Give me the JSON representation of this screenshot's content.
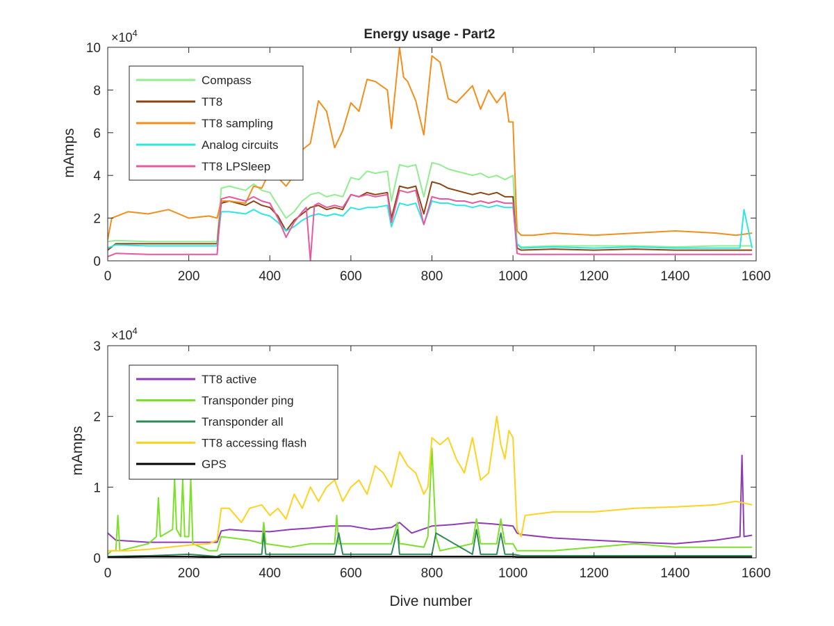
{
  "chart_data": [
    {
      "type": "line",
      "title": "Energy usage - Part2",
      "xlabel": "",
      "ylabel": "mAmps",
      "y_exponent_label": "×10",
      "y_exponent_power": "4",
      "xlim": [
        0,
        1600
      ],
      "ylim": [
        0,
        10
      ],
      "x_ticks": [
        "0",
        "200",
        "400",
        "600",
        "800",
        "1000",
        "1200",
        "1400",
        "1600"
      ],
      "y_ticks": [
        "0",
        "2",
        "4",
        "6",
        "8",
        "10"
      ],
      "legend_position": "top-left",
      "series": [
        {
          "name": "Compass",
          "color": "#90EE90",
          "x": [
            0,
            20,
            100,
            200,
            270,
            280,
            300,
            340,
            360,
            380,
            400,
            420,
            440,
            460,
            480,
            500,
            520,
            540,
            560,
            580,
            600,
            620,
            640,
            660,
            690,
            700,
            720,
            740,
            760,
            780,
            800,
            820,
            840,
            860,
            880,
            900,
            920,
            940,
            960,
            980,
            1000,
            1010,
            1020,
            1100,
            1200,
            1300,
            1400,
            1500,
            1560,
            1590
          ],
          "y": [
            0.9,
            0.95,
            0.9,
            0.9,
            0.9,
            3.4,
            3.5,
            3.3,
            3.6,
            3.3,
            3.2,
            2.6,
            2.0,
            2.3,
            2.8,
            3.1,
            3.2,
            3.0,
            3.1,
            3.0,
            3.9,
            3.8,
            4.2,
            4.1,
            4.2,
            2.8,
            4.5,
            4.4,
            4.5,
            3.0,
            4.6,
            4.5,
            4.3,
            4.2,
            4.1,
            4.0,
            4.1,
            3.9,
            4.0,
            3.8,
            4.0,
            0.8,
            0.65,
            0.7,
            0.7,
            0.7,
            0.65,
            0.7,
            0.7,
            0.7
          ]
        },
        {
          "name": "TT8",
          "color": "#8B4513",
          "x": [
            0,
            20,
            100,
            200,
            270,
            280,
            300,
            340,
            360,
            380,
            400,
            420,
            440,
            460,
            480,
            500,
            520,
            540,
            560,
            580,
            600,
            620,
            640,
            660,
            690,
            700,
            720,
            740,
            760,
            780,
            800,
            820,
            840,
            860,
            880,
            900,
            920,
            940,
            960,
            980,
            1000,
            1010,
            1020,
            1100,
            1200,
            1300,
            1400,
            1500,
            1560,
            1590
          ],
          "y": [
            0.5,
            0.8,
            0.8,
            0.8,
            0.8,
            2.7,
            2.8,
            2.6,
            2.8,
            2.6,
            2.5,
            2.1,
            1.4,
            1.9,
            2.2,
            2.5,
            2.6,
            2.4,
            2.5,
            2.4,
            3.1,
            3.0,
            3.2,
            3.1,
            3.2,
            2.0,
            3.5,
            3.4,
            3.5,
            2.2,
            3.7,
            3.6,
            3.4,
            3.3,
            3.2,
            3.1,
            3.2,
            3.1,
            3.2,
            3.0,
            3.0,
            0.6,
            0.5,
            0.55,
            0.5,
            0.55,
            0.5,
            0.5,
            0.5,
            0.5
          ]
        },
        {
          "name": "TT8 sampling",
          "color": "#F28E1C",
          "x": [
            0,
            10,
            50,
            100,
            150,
            200,
            250,
            270,
            280,
            300,
            340,
            360,
            380,
            400,
            420,
            440,
            460,
            480,
            500,
            520,
            540,
            560,
            580,
            600,
            620,
            640,
            660,
            690,
            700,
            720,
            730,
            740,
            760,
            780,
            800,
            820,
            840,
            860,
            880,
            900,
            920,
            940,
            960,
            980,
            990,
            1000,
            1010,
            1020,
            1050,
            1100,
            1200,
            1300,
            1400,
            1500,
            1550,
            1590
          ],
          "y": [
            1.0,
            2.0,
            2.3,
            2.2,
            2.4,
            2.0,
            2.1,
            2.0,
            2.8,
            2.8,
            2.7,
            3.5,
            3.4,
            4.2,
            3.9,
            3.5,
            4.0,
            5.2,
            5.5,
            7.5,
            7.0,
            5.3,
            6.1,
            7.4,
            7.0,
            8.5,
            8.4,
            8.0,
            6.2,
            10.0,
            8.6,
            8.4,
            7.5,
            5.9,
            9.6,
            9.3,
            7.6,
            7.4,
            7.8,
            8.2,
            7.1,
            8.0,
            7.4,
            7.9,
            6.5,
            6.5,
            1.4,
            1.2,
            1.2,
            1.3,
            1.2,
            1.3,
            1.4,
            1.3,
            1.2,
            1.3
          ]
        },
        {
          "name": "Analog circuits",
          "color": "#2EE5E5",
          "x": [
            0,
            20,
            100,
            200,
            270,
            280,
            300,
            340,
            360,
            380,
            400,
            420,
            440,
            460,
            480,
            500,
            520,
            540,
            560,
            580,
            600,
            620,
            640,
            660,
            690,
            700,
            720,
            740,
            760,
            780,
            800,
            820,
            840,
            860,
            880,
            900,
            920,
            940,
            960,
            980,
            1000,
            1010,
            1020,
            1100,
            1200,
            1300,
            1400,
            1500,
            1560,
            1570,
            1590
          ],
          "y": [
            0.6,
            0.75,
            0.7,
            0.7,
            0.7,
            2.3,
            2.3,
            2.2,
            2.4,
            2.2,
            2.1,
            1.8,
            1.4,
            1.6,
            1.9,
            2.1,
            2.2,
            2.1,
            2.2,
            2.1,
            2.5,
            2.4,
            2.5,
            2.5,
            2.6,
            1.6,
            2.7,
            2.6,
            2.7,
            1.7,
            2.8,
            2.7,
            2.7,
            2.6,
            2.6,
            2.5,
            2.6,
            2.5,
            2.6,
            2.5,
            2.5,
            0.8,
            0.6,
            0.65,
            0.6,
            0.65,
            0.6,
            0.6,
            0.6,
            2.4,
            0.6
          ]
        },
        {
          "name": "TT8 LPSleep",
          "color": "#E8589E",
          "x": [
            0,
            20,
            100,
            200,
            270,
            280,
            300,
            340,
            360,
            380,
            400,
            420,
            440,
            460,
            480,
            490,
            500,
            510,
            520,
            540,
            560,
            580,
            600,
            620,
            640,
            660,
            690,
            700,
            720,
            740,
            760,
            780,
            800,
            820,
            840,
            860,
            880,
            900,
            920,
            940,
            960,
            980,
            1000,
            1010,
            1020,
            1100,
            1200,
            1300,
            1400,
            1500,
            1560,
            1590
          ],
          "y": [
            0.2,
            0.35,
            0.3,
            0.3,
            0.3,
            2.9,
            3.0,
            2.8,
            3.0,
            2.8,
            2.7,
            2.0,
            1.1,
            1.8,
            2.3,
            2.5,
            0.0,
            2.6,
            2.7,
            2.5,
            2.6,
            2.5,
            3.1,
            3.0,
            3.1,
            3.0,
            3.1,
            1.8,
            3.3,
            3.2,
            3.3,
            1.7,
            3.0,
            2.9,
            2.9,
            2.8,
            2.8,
            2.7,
            2.8,
            2.7,
            2.8,
            2.7,
            2.7,
            0.35,
            0.3,
            0.3,
            0.3,
            0.3,
            0.3,
            0.3,
            0.3,
            0.3
          ]
        }
      ]
    },
    {
      "type": "line",
      "title": "",
      "xlabel": "Dive number",
      "ylabel": "mAmps",
      "y_exponent_label": "×10",
      "y_exponent_power": "4",
      "xlim": [
        0,
        1600
      ],
      "ylim": [
        0,
        3
      ],
      "x_ticks": [
        "0",
        "200",
        "400",
        "600",
        "800",
        "1000",
        "1200",
        "1400",
        "1600"
      ],
      "y_ticks": [
        "0",
        "1",
        "2",
        "3"
      ],
      "legend_position": "top-left",
      "series": [
        {
          "name": "TT8 active",
          "color": "#8E3BB5",
          "x": [
            0,
            20,
            100,
            200,
            260,
            270,
            280,
            300,
            350,
            400,
            450,
            500,
            550,
            600,
            650,
            700,
            720,
            750,
            800,
            850,
            900,
            950,
            1000,
            1010,
            1020,
            1100,
            1200,
            1300,
            1400,
            1500,
            1560,
            1565,
            1570,
            1590
          ],
          "y": [
            0.35,
            0.25,
            0.22,
            0.22,
            0.22,
            0.22,
            0.38,
            0.4,
            0.38,
            0.37,
            0.4,
            0.42,
            0.45,
            0.45,
            0.4,
            0.43,
            0.5,
            0.35,
            0.45,
            0.47,
            0.5,
            0.48,
            0.45,
            0.35,
            0.33,
            0.28,
            0.25,
            0.22,
            0.2,
            0.25,
            0.3,
            1.45,
            0.3,
            0.32
          ]
        },
        {
          "name": "Transponder ping",
          "color": "#7CE02A",
          "x": [
            0,
            10,
            20,
            25,
            30,
            100,
            120,
            125,
            130,
            160,
            165,
            170,
            180,
            185,
            190,
            200,
            205,
            210,
            250,
            270,
            280,
            350,
            380,
            385,
            390,
            450,
            500,
            560,
            565,
            570,
            600,
            700,
            715,
            720,
            725,
            780,
            790,
            800,
            810,
            820,
            900,
            910,
            920,
            960,
            970,
            980,
            1000,
            1010,
            1020,
            1100,
            1200,
            1300,
            1400,
            1500,
            1590
          ],
          "y": [
            0.05,
            0.1,
            0.1,
            0.6,
            0.1,
            0.2,
            0.3,
            0.85,
            0.3,
            0.4,
            1.12,
            0.4,
            0.3,
            1.12,
            0.3,
            0.3,
            1.12,
            0.2,
            0.1,
            0.1,
            0.3,
            0.25,
            0.2,
            0.5,
            0.2,
            0.15,
            0.2,
            0.2,
            0.6,
            0.2,
            0.2,
            0.2,
            0.5,
            0.2,
            0.2,
            0.15,
            0.3,
            1.55,
            0.3,
            0.1,
            0.2,
            0.55,
            0.2,
            0.2,
            0.55,
            0.2,
            0.2,
            0.1,
            0.1,
            0.1,
            0.15,
            0.2,
            0.15,
            0.15,
            0.15
          ]
        },
        {
          "name": "Transponder all",
          "color": "#2E8B57",
          "x": [
            0,
            100,
            200,
            270,
            280,
            350,
            380,
            385,
            390,
            450,
            500,
            560,
            570,
            580,
            600,
            700,
            715,
            720,
            725,
            780,
            800,
            810,
            900,
            910,
            920,
            960,
            970,
            980,
            1000,
            1020,
            1100,
            1200,
            1300,
            1400,
            1500,
            1590
          ],
          "y": [
            0.02,
            0.03,
            0.05,
            0.02,
            0.05,
            0.05,
            0.05,
            0.35,
            0.05,
            0.05,
            0.05,
            0.05,
            0.35,
            0.05,
            0.05,
            0.05,
            0.4,
            0.05,
            0.05,
            0.05,
            0.05,
            0.35,
            0.05,
            0.4,
            0.05,
            0.05,
            0.35,
            0.05,
            0.05,
            0.03,
            0.03,
            0.03,
            0.03,
            0.03,
            0.03,
            0.03
          ]
        },
        {
          "name": "TT8 accessing flash",
          "color": "#FFD21F",
          "x": [
            0,
            50,
            100,
            150,
            200,
            250,
            270,
            280,
            300,
            330,
            350,
            380,
            400,
            420,
            440,
            460,
            480,
            500,
            520,
            540,
            560,
            580,
            600,
            620,
            640,
            660,
            680,
            700,
            720,
            740,
            760,
            780,
            790,
            800,
            820,
            840,
            860,
            880,
            900,
            920,
            940,
            960,
            970,
            980,
            990,
            1000,
            1010,
            1020,
            1030,
            1100,
            1200,
            1300,
            1400,
            1500,
            1550,
            1590
          ],
          "y": [
            0.1,
            0.1,
            0.12,
            0.15,
            0.18,
            0.2,
            0.25,
            0.7,
            0.7,
            0.5,
            0.7,
            0.75,
            0.6,
            0.7,
            0.55,
            0.9,
            0.7,
            1.0,
            0.8,
            1.0,
            1.1,
            0.8,
            1.0,
            1.1,
            0.9,
            1.3,
            1.2,
            1.0,
            1.5,
            1.3,
            1.2,
            0.9,
            1.0,
            1.7,
            1.6,
            1.7,
            1.4,
            1.2,
            1.7,
            1.1,
            1.2,
            2.0,
            1.6,
            1.4,
            1.8,
            1.7,
            0.4,
            0.3,
            0.6,
            0.65,
            0.65,
            0.7,
            0.72,
            0.75,
            0.8,
            0.75
          ]
        },
        {
          "name": "GPS",
          "color": "#000000",
          "x": [
            0,
            100,
            200,
            270,
            280,
            400,
            600,
            800,
            1000,
            1020,
            1200,
            1400,
            1590
          ],
          "y": [
            0.01,
            0.02,
            0.02,
            0.01,
            0.02,
            0.02,
            0.02,
            0.02,
            0.02,
            0.01,
            0.01,
            0.01,
            0.01
          ]
        }
      ]
    }
  ]
}
